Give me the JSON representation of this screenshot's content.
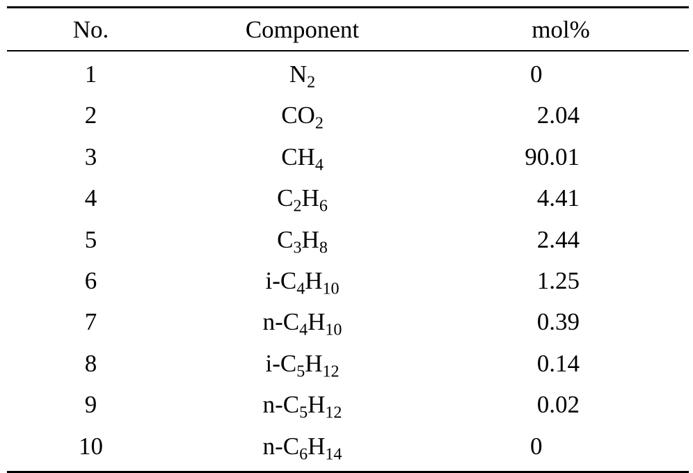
{
  "table": {
    "headers": {
      "no": "No.",
      "component": "Component",
      "mol": "mol%"
    },
    "rows": [
      {
        "no": "1",
        "prefix": "",
        "parts": [
          [
            "N",
            "2"
          ]
        ],
        "mol": "0"
      },
      {
        "no": "2",
        "prefix": "",
        "parts": [
          [
            "CO",
            "2"
          ]
        ],
        "mol": "2.04"
      },
      {
        "no": "3",
        "prefix": "",
        "parts": [
          [
            "CH",
            "4"
          ]
        ],
        "mol": "90.01"
      },
      {
        "no": "4",
        "prefix": "",
        "parts": [
          [
            "C",
            "2"
          ],
          [
            "H",
            "6"
          ]
        ],
        "mol": "4.41"
      },
      {
        "no": "5",
        "prefix": "",
        "parts": [
          [
            "C",
            "3"
          ],
          [
            "H",
            "8"
          ]
        ],
        "mol": "2.44"
      },
      {
        "no": "6",
        "prefix": "i-",
        "parts": [
          [
            "C",
            "4"
          ],
          [
            "H",
            "10"
          ]
        ],
        "mol": "1.25"
      },
      {
        "no": "7",
        "prefix": "n-",
        "parts": [
          [
            "C",
            "4"
          ],
          [
            "H",
            "10"
          ]
        ],
        "mol": "0.39"
      },
      {
        "no": "8",
        "prefix": "i-",
        "parts": [
          [
            "C",
            "5"
          ],
          [
            "H",
            "12"
          ]
        ],
        "mol": "0.14"
      },
      {
        "no": "9",
        "prefix": "n-",
        "parts": [
          [
            "C",
            "5"
          ],
          [
            "H",
            "12"
          ]
        ],
        "mol": "0.02"
      },
      {
        "no": "10",
        "prefix": "n-",
        "parts": [
          [
            "C",
            "6"
          ],
          [
            "H",
            "14"
          ]
        ],
        "mol": "0"
      }
    ]
  }
}
